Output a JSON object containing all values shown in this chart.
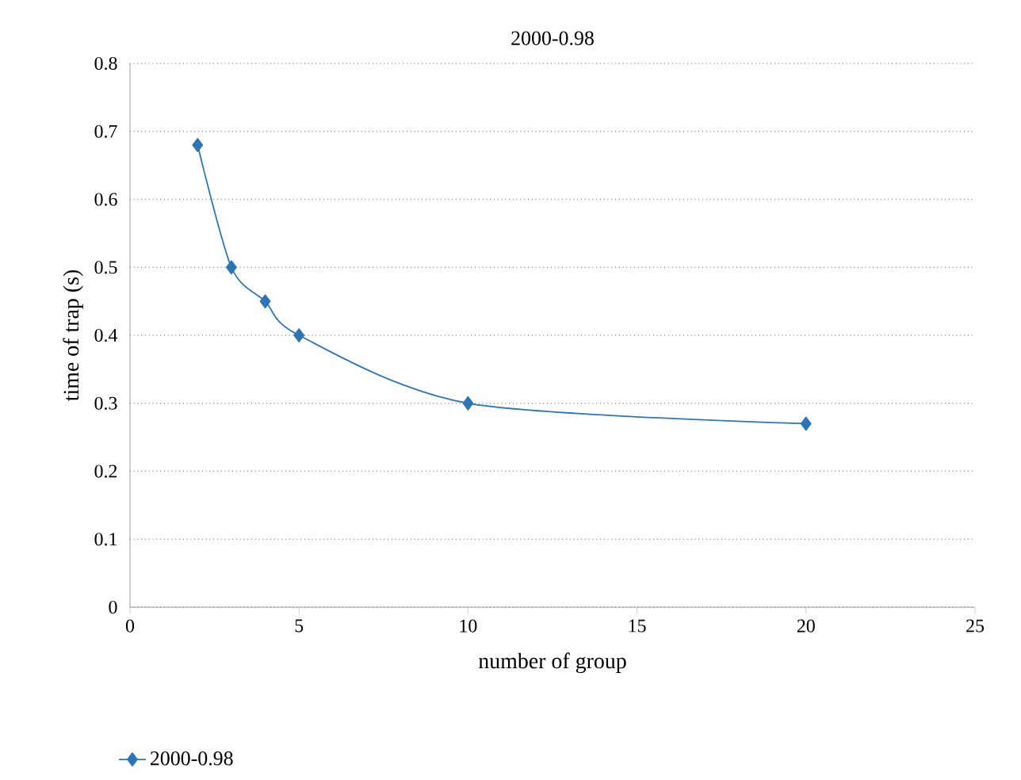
{
  "chart_data": {
    "type": "line",
    "title": "2000-0.98",
    "xlabel": "number of group",
    "ylabel": "time of trap (s)",
    "x": [
      2,
      3,
      4,
      5,
      10,
      20
    ],
    "series": [
      {
        "name": "2000-0.98",
        "color": "#2e75b6",
        "values": [
          0.68,
          0.5,
          0.45,
          0.4,
          0.3,
          0.27
        ]
      }
    ],
    "xlim": [
      0,
      25
    ],
    "xticks": [
      0,
      5,
      10,
      15,
      20,
      25
    ],
    "ylim": [
      0,
      0.8
    ],
    "yticks": [
      0,
      0.1,
      0.2,
      0.3,
      0.4,
      0.5,
      0.6,
      0.7,
      0.8
    ],
    "grid": "y",
    "legend": "bottom left",
    "marker": "diamond",
    "line_style": "solid"
  }
}
